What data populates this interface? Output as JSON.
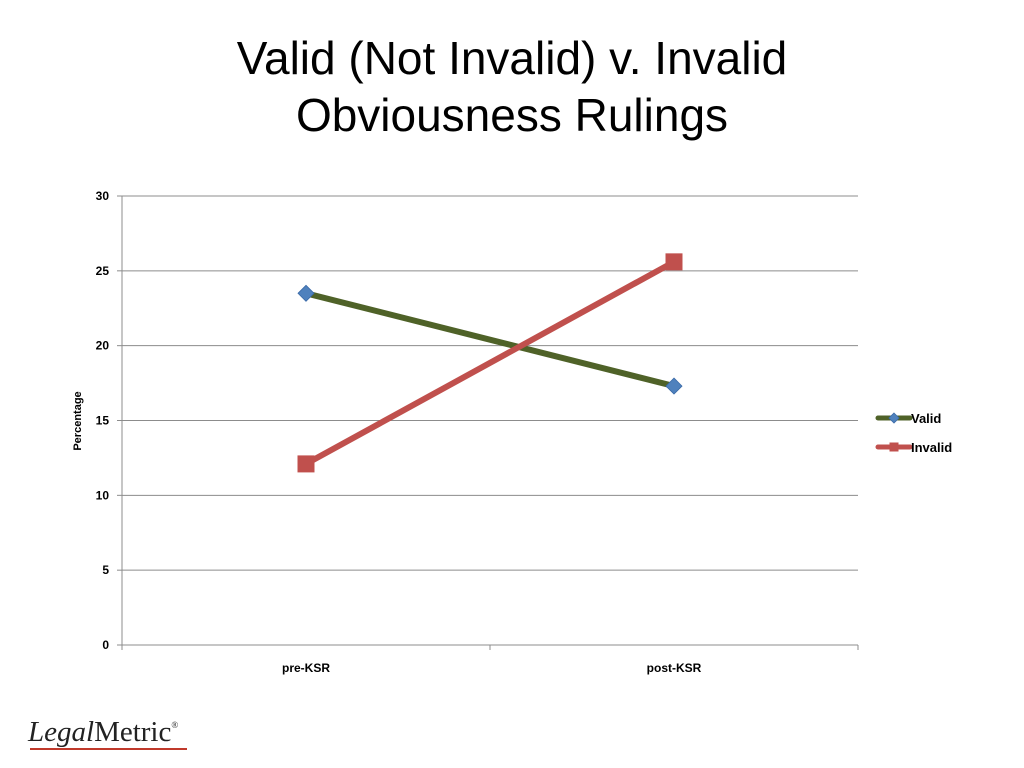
{
  "slide": {
    "title_line1": "Valid (Not Invalid) v. Invalid",
    "title_line2": "Obviousness Rulings"
  },
  "logo": {
    "part1": "Legal",
    "part2": "Metric",
    "mark": "®"
  },
  "colors": {
    "valid_line": "#4f6228",
    "valid_marker": "#4f81bd",
    "invalid": "#c0504d",
    "grid": "#8c8c8c"
  },
  "chart_data": {
    "type": "line",
    "title": "",
    "xlabel": "",
    "ylabel": "Percentage",
    "categories": [
      "pre-KSR",
      "post-KSR"
    ],
    "ylim": [
      0,
      30
    ],
    "yticks": [
      0,
      5,
      10,
      15,
      20,
      25,
      30
    ],
    "grid": true,
    "legend_position": "right",
    "series": [
      {
        "name": "Valid",
        "values": [
          23.5,
          17.3
        ],
        "marker": "diamond"
      },
      {
        "name": "Invalid",
        "values": [
          12.1,
          25.6
        ],
        "marker": "square"
      }
    ]
  }
}
